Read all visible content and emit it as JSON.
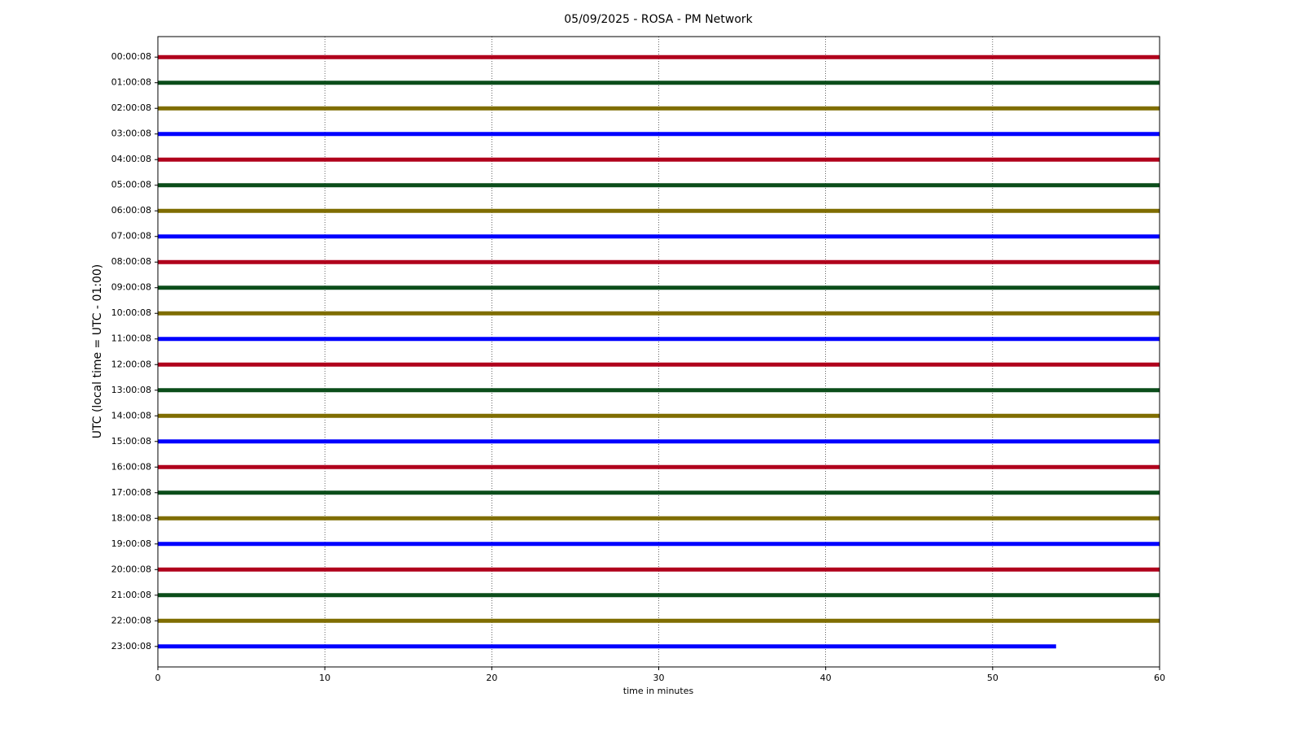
{
  "chart_data": {
    "type": "helicorder",
    "title": "05/09/2025 - ROSA - PM Network",
    "xlabel": "time in minutes",
    "ylabel": "UTC (local time = UTC - 01:00)",
    "xlim": [
      0,
      60
    ],
    "xticks": [
      0,
      10,
      20,
      30,
      40,
      50,
      60
    ],
    "grid": true,
    "series": [
      {
        "name": "00:00:08",
        "color": "#b0001c",
        "x": [
          0,
          60
        ]
      },
      {
        "name": "01:00:08",
        "color": "#0b4d1a",
        "x": [
          0,
          60
        ]
      },
      {
        "name": "02:00:08",
        "color": "#7f6d00",
        "x": [
          0,
          60
        ]
      },
      {
        "name": "03:00:08",
        "color": "#0000ff",
        "x": [
          0,
          60
        ]
      },
      {
        "name": "04:00:08",
        "color": "#b0001c",
        "x": [
          0,
          60
        ]
      },
      {
        "name": "05:00:08",
        "color": "#0b4d1a",
        "x": [
          0,
          60
        ]
      },
      {
        "name": "06:00:08",
        "color": "#7f6d00",
        "x": [
          0,
          60
        ]
      },
      {
        "name": "07:00:08",
        "color": "#0000ff",
        "x": [
          0,
          60
        ]
      },
      {
        "name": "08:00:08",
        "color": "#b0001c",
        "x": [
          0,
          60
        ]
      },
      {
        "name": "09:00:08",
        "color": "#0b4d1a",
        "x": [
          0,
          60
        ]
      },
      {
        "name": "10:00:08",
        "color": "#7f6d00",
        "x": [
          0,
          60
        ]
      },
      {
        "name": "11:00:08",
        "color": "#0000ff",
        "x": [
          0,
          60
        ]
      },
      {
        "name": "12:00:08",
        "color": "#b0001c",
        "x": [
          0,
          60
        ]
      },
      {
        "name": "13:00:08",
        "color": "#0b4d1a",
        "x": [
          0,
          60
        ]
      },
      {
        "name": "14:00:08",
        "color": "#7f6d00",
        "x": [
          0,
          60
        ]
      },
      {
        "name": "15:00:08",
        "color": "#0000ff",
        "x": [
          0,
          60
        ]
      },
      {
        "name": "16:00:08",
        "color": "#b0001c",
        "x": [
          0,
          60
        ]
      },
      {
        "name": "17:00:08",
        "color": "#0b4d1a",
        "x": [
          0,
          60
        ]
      },
      {
        "name": "18:00:08",
        "color": "#7f6d00",
        "x": [
          0,
          60
        ]
      },
      {
        "name": "19:00:08",
        "color": "#0000ff",
        "x": [
          0,
          60
        ]
      },
      {
        "name": "20:00:08",
        "color": "#b0001c",
        "x": [
          0,
          60
        ]
      },
      {
        "name": "21:00:08",
        "color": "#0b4d1a",
        "x": [
          0,
          60
        ]
      },
      {
        "name": "22:00:08",
        "color": "#7f6d00",
        "x": [
          0,
          60
        ]
      },
      {
        "name": "23:00:08",
        "color": "#0000ff",
        "x": [
          0,
          53.8
        ]
      }
    ]
  }
}
